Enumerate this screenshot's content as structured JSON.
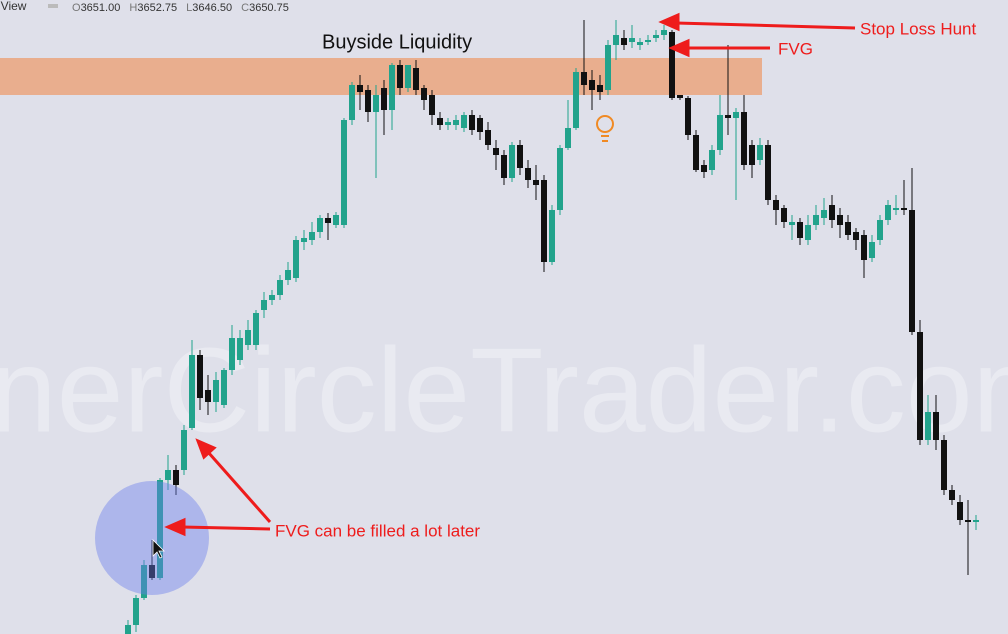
{
  "header": {
    "app": "gView",
    "ohlc": [
      "O",
      "3651.00",
      "H",
      "3652.75",
      "L",
      "3646.50",
      "C",
      "3650.75"
    ]
  },
  "chart_data": {
    "type": "candlestick",
    "watermark": "nerCircleTrader.com",
    "up_color": "#22a38c",
    "down_color": "#111111",
    "ylim": [
      3533,
      3660
    ],
    "zone": {
      "label": "Buyside Liquidity",
      "range": [
        3641,
        3648.4
      ],
      "color": "#eba47e"
    },
    "annotations": [
      "Stop Loss Hunt",
      "FVG",
      "FVG can be filled a lot later"
    ],
    "ohlc": [
      [
        3533.2,
        3536,
        3533.2,
        3535
      ],
      [
        3535,
        3541,
        3533.6,
        3540.4
      ],
      [
        3540.4,
        3548,
        3540,
        3547
      ],
      [
        3547,
        3552,
        3544,
        3544.4
      ],
      [
        3544.4,
        3564.4,
        3544,
        3564
      ],
      [
        3564,
        3569,
        3562,
        3566
      ],
      [
        3566,
        3567,
        3561,
        3563
      ],
      [
        3566,
        3575,
        3565,
        3574
      ],
      [
        3574.4,
        3592,
        3574,
        3589
      ],
      [
        3589,
        3590,
        3578,
        3580.4
      ],
      [
        3582,
        3585,
        3577,
        3579.6
      ],
      [
        3579.6,
        3585.6,
        3577.6,
        3584
      ],
      [
        3579,
        3586.4,
        3578.4,
        3586
      ],
      [
        3586,
        3595,
        3585,
        3592.4
      ],
      [
        3588,
        3594,
        3587,
        3592.4
      ],
      [
        3591,
        3596,
        3590,
        3594
      ],
      [
        3591,
        3598,
        3590,
        3597.4
      ],
      [
        3598,
        3601.6,
        3596.4,
        3600
      ],
      [
        3600,
        3602,
        3599,
        3601
      ],
      [
        3601,
        3605,
        3600,
        3604
      ],
      [
        3604,
        3607.6,
        3603,
        3606
      ],
      [
        3604.4,
        3612.8,
        3603.6,
        3612
      ],
      [
        3611.6,
        3614,
        3610,
        3612.4
      ],
      [
        3612,
        3615.6,
        3611,
        3613.6
      ],
      [
        3613.6,
        3617,
        3612.4,
        3616.4
      ],
      [
        3616.4,
        3617.4,
        3612,
        3615.4
      ],
      [
        3615,
        3617.6,
        3614.4,
        3617
      ],
      [
        3615,
        3636.4,
        3614.4,
        3636
      ],
      [
        3636,
        3643.6,
        3635,
        3643
      ],
      [
        3643,
        3645,
        3638,
        3641.6
      ],
      [
        3642,
        3643,
        3635.6,
        3637.6
      ],
      [
        3637.6,
        3643,
        3624.4,
        3641
      ],
      [
        3642.4,
        3644,
        3633,
        3638
      ],
      [
        3638,
        3647.4,
        3634,
        3647
      ],
      [
        3647,
        3648,
        3641,
        3642.4
      ],
      [
        3642.4,
        3647,
        3641.6,
        3647
      ],
      [
        3646.4,
        3648,
        3641,
        3642
      ],
      [
        3642.4,
        3643,
        3638,
        3640
      ],
      [
        3641,
        3642,
        3635,
        3637
      ],
      [
        3636.4,
        3637.6,
        3634,
        3635
      ],
      [
        3635,
        3636.4,
        3634,
        3635.6
      ],
      [
        3635,
        3637,
        3634,
        3636
      ],
      [
        3634.4,
        3637.6,
        3633.6,
        3637
      ],
      [
        3637,
        3638,
        3633,
        3634
      ],
      [
        3636.4,
        3637,
        3632,
        3633.6
      ],
      [
        3634,
        3635.6,
        3630,
        3631
      ],
      [
        3630.4,
        3632,
        3626,
        3629
      ],
      [
        3629,
        3630,
        3623,
        3624.4
      ],
      [
        3624.4,
        3631.6,
        3623.6,
        3631
      ],
      [
        3631,
        3632,
        3625,
        3626.4
      ],
      [
        3626.4,
        3628,
        3622.4,
        3624
      ],
      [
        3624,
        3627,
        3620,
        3623
      ],
      [
        3624,
        3625,
        3605.6,
        3607.6
      ],
      [
        3607.6,
        3619,
        3607,
        3618
      ],
      [
        3618,
        3631,
        3617,
        3630.4
      ],
      [
        3630.4,
        3640,
        3630,
        3634.4
      ],
      [
        3634.4,
        3646.4,
        3634,
        3645.6
      ],
      [
        3645.6,
        3656,
        3641,
        3643
      ],
      [
        3644,
        3646,
        3638,
        3642
      ],
      [
        3643,
        3645,
        3640,
        3641.6
      ],
      [
        3642,
        3652,
        3641,
        3651
      ],
      [
        3651,
        3656,
        3648,
        3653
      ],
      [
        3652.4,
        3654,
        3650,
        3651
      ],
      [
        3651.6,
        3655,
        3650.4,
        3652.4
      ],
      [
        3651,
        3652.4,
        3650,
        3651.6
      ],
      [
        3651.6,
        3653,
        3651,
        3652
      ],
      [
        3652.4,
        3654,
        3651.6,
        3653
      ],
      [
        3653,
        3655,
        3652,
        3654
      ],
      [
        3653.6,
        3654,
        3640,
        3640.4
      ],
      [
        3641,
        3641,
        3640,
        3640.4
      ],
      [
        3640.4,
        3640.8,
        3632,
        3633
      ],
      [
        3633,
        3634,
        3625.6,
        3626
      ],
      [
        3627,
        3628,
        3624.4,
        3625.6
      ],
      [
        3626,
        3631,
        3625,
        3630
      ],
      [
        3630,
        3641,
        3629,
        3637
      ],
      [
        3637,
        3651,
        3633,
        3636.4
      ],
      [
        3636.4,
        3638.4,
        3620,
        3637.6
      ],
      [
        3637.6,
        3641,
        3626,
        3627
      ],
      [
        3631,
        3632,
        3624.4,
        3627
      ],
      [
        3628,
        3632.4,
        3627,
        3631
      ],
      [
        3631,
        3632,
        3619,
        3620
      ],
      [
        3620,
        3621,
        3615,
        3618
      ],
      [
        3618.4,
        3619,
        3614.4,
        3615.6
      ],
      [
        3615,
        3617,
        3612,
        3615.6
      ],
      [
        3615.6,
        3616.4,
        3611,
        3612.4
      ],
      [
        3612,
        3617,
        3611,
        3615
      ],
      [
        3615,
        3619,
        3614,
        3617
      ],
      [
        3616.4,
        3620.4,
        3615,
        3618
      ],
      [
        3619,
        3621,
        3614.4,
        3616
      ],
      [
        3617,
        3618.4,
        3612.4,
        3615
      ],
      [
        3615.6,
        3617,
        3612,
        3613
      ],
      [
        3613.6,
        3614.4,
        3610,
        3612
      ],
      [
        3613,
        3614,
        3604.4,
        3608
      ],
      [
        3608.4,
        3613,
        3607.6,
        3611.6
      ],
      [
        3612,
        3617,
        3611,
        3616
      ],
      [
        3616,
        3620,
        3615,
        3619
      ],
      [
        3618,
        3621,
        3617,
        3618.4
      ],
      [
        3618.4,
        3624,
        3617,
        3618
      ],
      [
        3618,
        3626.4,
        3593,
        3593.6
      ],
      [
        3593.6,
        3596,
        3571,
        3572
      ],
      [
        3572,
        3581,
        3571,
        3577.6
      ],
      [
        3577.6,
        3581,
        3570,
        3572
      ],
      [
        3572,
        3573,
        3561,
        3562
      ],
      [
        3562,
        3563,
        3559,
        3560
      ],
      [
        3559.6,
        3561,
        3555,
        3556
      ],
      [
        3556,
        3560,
        3545,
        3555.6
      ],
      [
        3555.6,
        3557,
        3554,
        3556
      ]
    ]
  }
}
